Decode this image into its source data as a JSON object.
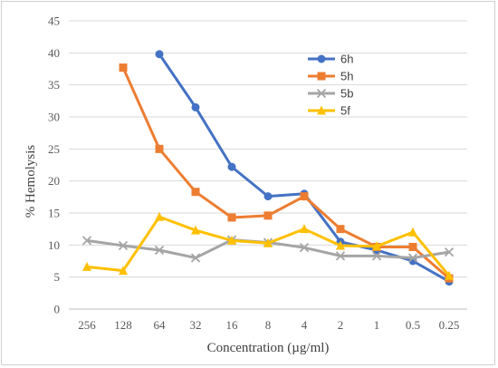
{
  "chart_data": {
    "type": "line",
    "title": "",
    "xlabel": "Concentration (µg/ml)",
    "ylabel": "% Hemolysis",
    "categories": [
      "256",
      "128",
      "64",
      "32",
      "16",
      "8",
      "4",
      "2",
      "1",
      "0.5",
      "0.25"
    ],
    "ylim": [
      0,
      45
    ],
    "yticks": [
      0,
      5,
      10,
      15,
      20,
      25,
      30,
      35,
      40,
      45
    ],
    "grid": true,
    "legend_position": "top-right",
    "series": [
      {
        "name": "6h",
        "color": "#4472C4",
        "marker": "circle",
        "values": [
          null,
          null,
          39.8,
          31.5,
          22.2,
          17.6,
          18.0,
          10.5,
          9.2,
          7.5,
          4.3
        ]
      },
      {
        "name": "5h",
        "color": "#ED7D31",
        "marker": "square",
        "values": [
          null,
          37.7,
          25.0,
          18.3,
          14.3,
          14.6,
          17.6,
          12.5,
          9.7,
          9.7,
          4.8
        ]
      },
      {
        "name": "5b",
        "color": "#A5A5A5",
        "marker": "x",
        "values": [
          10.7,
          9.9,
          9.2,
          8.0,
          10.8,
          10.4,
          9.6,
          8.3,
          8.3,
          8.0,
          8.9
        ]
      },
      {
        "name": "5f",
        "color": "#FFC000",
        "marker": "triangle",
        "values": [
          6.6,
          6.0,
          14.4,
          12.3,
          10.7,
          10.3,
          12.5,
          9.9,
          9.8,
          12.0,
          5.2
        ]
      }
    ]
  }
}
